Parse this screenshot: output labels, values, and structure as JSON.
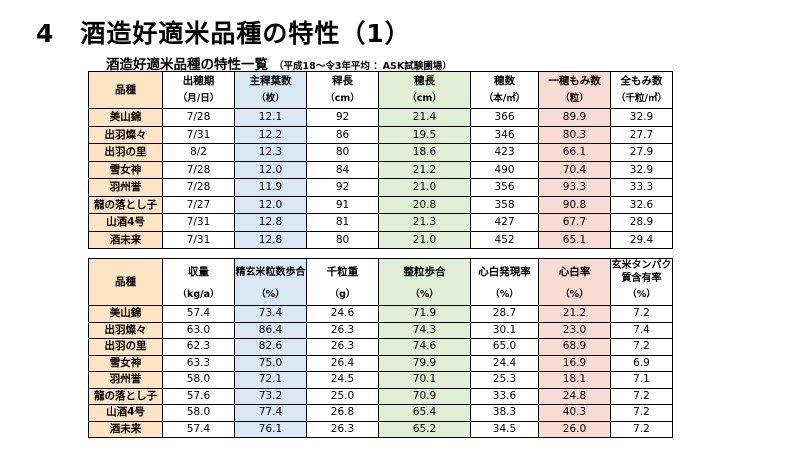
{
  "page": {
    "title": "4　酒造好適米品種の特性（1）",
    "subtitle": "酒造好適米品種の特性一覧",
    "note": "（平成18～令3年平均 ：ASK試験圃場）"
  },
  "table1": {
    "headers": [
      {
        "label": "品種",
        "unit": ""
      },
      {
        "label": "出穂期",
        "unit": "（月/日）"
      },
      {
        "label": "主稈葉数",
        "unit": "（枚）"
      },
      {
        "label": "稈長",
        "unit": "（cm）"
      },
      {
        "label": "穂長",
        "unit": "（cm）"
      },
      {
        "label": "穂数",
        "unit": "（本/㎡）"
      },
      {
        "label": "一穂もみ数",
        "unit": "（粒）"
      },
      {
        "label": "全もみ数",
        "unit": "（千粒/㎡）"
      }
    ],
    "rows": [
      [
        "美山錦",
        "7/28",
        "12.1",
        "92",
        "21.4",
        "366",
        "89.9",
        "32.9"
      ],
      [
        "出羽燦々",
        "7/31",
        "12.2",
        "86",
        "19.5",
        "346",
        "80.3",
        "27.7"
      ],
      [
        "出羽の里",
        "8/2",
        "12.3",
        "80",
        "18.6",
        "423",
        "66.1",
        "27.9"
      ],
      [
        "雪女神",
        "7/28",
        "12.0",
        "84",
        "21.2",
        "490",
        "70.4",
        "32.9"
      ],
      [
        "羽州誉",
        "7/28",
        "11.9",
        "92",
        "21.0",
        "356",
        "93.3",
        "33.3"
      ],
      [
        "龍の落とし子",
        "7/27",
        "12.0",
        "91",
        "20.8",
        "358",
        "90.8",
        "32.6"
      ],
      [
        "山酒4号",
        "7/31",
        "12.8",
        "81",
        "21.3",
        "427",
        "67.7",
        "28.9"
      ],
      [
        "酒未来",
        "7/31",
        "12.8",
        "80",
        "21.0",
        "452",
        "65.1",
        "29.4"
      ]
    ]
  },
  "table2": {
    "headers": [
      {
        "label": "品種",
        "unit": ""
      },
      {
        "label": "収量",
        "unit": "（kg/a）"
      },
      {
        "label": "精玄米粒数歩合",
        "unit": "（%）"
      },
      {
        "label": "千粒重",
        "unit": "（g）"
      },
      {
        "label": "整粒歩合",
        "unit": "（%）"
      },
      {
        "label": "心白発現率",
        "unit": "（%）"
      },
      {
        "label": "心白率",
        "unit": "（%）"
      },
      {
        "label": "玄米タンパク質含有率",
        "unit": "（%）"
      }
    ],
    "rows": [
      [
        "美山錦",
        "57.4",
        "73.4",
        "24.6",
        "71.9",
        "28.7",
        "21.2",
        "7.2"
      ],
      [
        "出羽燦々",
        "63.0",
        "86.4",
        "26.3",
        "74.3",
        "30.1",
        "23.0",
        "7.4"
      ],
      [
        "出羽の里",
        "62.3",
        "82.6",
        "26.3",
        "74.6",
        "65.0",
        "68.9",
        "7.2"
      ],
      [
        "雪女神",
        "63.3",
        "75.0",
        "26.4",
        "79.9",
        "24.4",
        "16.9",
        "6.9"
      ],
      [
        "羽州誉",
        "58.0",
        "72.1",
        "24.5",
        "70.1",
        "25.3",
        "18.1",
        "7.1"
      ],
      [
        "龍の落とし子",
        "57.6",
        "73.2",
        "25.0",
        "70.9",
        "33.6",
        "24.8",
        "7.2"
      ],
      [
        "山酒4号",
        "58.0",
        "77.4",
        "26.8",
        "65.4",
        "38.3",
        "40.3",
        "7.2"
      ],
      [
        "酒未来",
        "57.4",
        "76.1",
        "26.3",
        "65.2",
        "34.5",
        "26.0",
        "7.2"
      ]
    ]
  },
  "colors": {
    "variety_column": "#fce4c4",
    "highlight_blue": "#dae8f5",
    "highlight_green": "#e0efd6",
    "highlight_pink": "#f8dcd3"
  }
}
